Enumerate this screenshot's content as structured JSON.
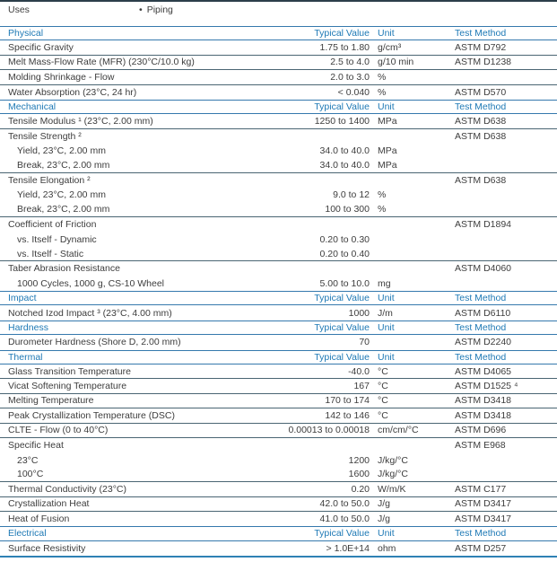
{
  "colors": {
    "accent_blue": "#1e79b5",
    "row_line": "#4a6573",
    "body_text": "#3d3d3d"
  },
  "uses": {
    "label": "Uses",
    "bullet": "•",
    "items": [
      "Piping"
    ]
  },
  "table": {
    "column_headers": {
      "value": "Typical Value",
      "unit": "Unit",
      "method": "Test Method"
    },
    "rows": [
      {
        "type": "section",
        "label": "Physical"
      },
      {
        "label": "Specific Gravity",
        "value": "1.75 to 1.80",
        "unit": "g/cm³",
        "method": "ASTM D792",
        "divider": true
      },
      {
        "label": "Melt Mass-Flow Rate (MFR) (230°C/10.0 kg)",
        "value": "2.5 to 4.0",
        "unit": "g/10 min",
        "method": "ASTM D1238",
        "divider": true
      },
      {
        "label": "Molding Shrinkage - Flow",
        "value": "2.0 to 3.0",
        "unit": "%",
        "method": "",
        "divider": true
      },
      {
        "label": "Water Absorption (23°C, 24 hr)",
        "value": "< 0.040",
        "unit": "%",
        "method": "ASTM D570",
        "divider": false
      },
      {
        "type": "section",
        "label": "Mechanical"
      },
      {
        "label": "Tensile Modulus ¹ (23°C, 2.00 mm)",
        "value": "1250 to 1400",
        "unit": "MPa",
        "method": "ASTM D638",
        "divider": true
      },
      {
        "label": "Tensile Strength ²",
        "value": "",
        "unit": "",
        "method": "ASTM D638",
        "divider": false
      },
      {
        "label": "Yield, 23°C, 2.00 mm",
        "indent": true,
        "value": "34.0 to 40.0",
        "unit": "MPa",
        "method": "",
        "divider": false
      },
      {
        "label": "Break, 23°C, 2.00 mm",
        "indent": true,
        "value": "34.0 to 40.0",
        "unit": "MPa",
        "method": "",
        "divider": true
      },
      {
        "label": "Tensile Elongation ²",
        "value": "",
        "unit": "",
        "method": "ASTM D638",
        "divider": false
      },
      {
        "label": "Yield, 23°C, 2.00 mm",
        "indent": true,
        "value": "9.0 to 12",
        "unit": "%",
        "method": "",
        "divider": false
      },
      {
        "label": "Break, 23°C, 2.00 mm",
        "indent": true,
        "value": "100 to 300",
        "unit": "%",
        "method": "",
        "divider": true
      },
      {
        "label": "Coefficient of Friction",
        "value": "",
        "unit": "",
        "method": "ASTM D1894",
        "divider": false
      },
      {
        "label": "vs. Itself - Dynamic",
        "indent": true,
        "value": "0.20 to 0.30",
        "unit": "",
        "method": "",
        "divider": false
      },
      {
        "label": "vs. Itself - Static",
        "indent": true,
        "value": "0.20 to 0.40",
        "unit": "",
        "method": "",
        "divider": true
      },
      {
        "label": "Taber Abrasion Resistance",
        "value": "",
        "unit": "",
        "method": "ASTM D4060",
        "divider": false
      },
      {
        "label": "1000 Cycles, 1000 g, CS-10 Wheel",
        "indent": true,
        "value": "5.00 to 10.0",
        "unit": "mg",
        "method": "",
        "divider": false
      },
      {
        "type": "section",
        "label": "Impact"
      },
      {
        "label": "Notched Izod Impact ³ (23°C, 4.00 mm)",
        "value": "1000",
        "unit": "J/m",
        "method": "ASTM D6110",
        "divider": false
      },
      {
        "type": "section",
        "label": "Hardness"
      },
      {
        "label": "Durometer Hardness (Shore D, 2.00 mm)",
        "value": "70",
        "unit": "",
        "method": "ASTM D2240",
        "divider": false
      },
      {
        "type": "section",
        "label": "Thermal"
      },
      {
        "label": "Glass Transition Temperature",
        "value": "-40.0",
        "unit": "°C",
        "method": "ASTM D4065",
        "divider": true
      },
      {
        "label": "Vicat Softening Temperature",
        "value": "167",
        "unit": "°C",
        "method": "ASTM D1525 ⁴",
        "divider": true
      },
      {
        "label": "Melting Temperature",
        "value": "170 to 174",
        "unit": "°C",
        "method": "ASTM D3418",
        "divider": true
      },
      {
        "label": "Peak Crystallization Temperature (DSC)",
        "value": "142 to 146",
        "unit": "°C",
        "method": "ASTM D3418",
        "divider": true
      },
      {
        "label": "CLTE - Flow (0 to 40°C)",
        "value": "0.00013 to 0.00018",
        "unit": "cm/cm/°C",
        "method": "ASTM D696",
        "divider": true
      },
      {
        "label": "Specific Heat",
        "value": "",
        "unit": "",
        "method": "ASTM E968",
        "divider": false
      },
      {
        "label": "23°C",
        "indent": true,
        "value": "1200",
        "unit": "J/kg/°C",
        "method": "",
        "divider": false
      },
      {
        "label": "100°C",
        "indent": true,
        "value": "1600",
        "unit": "J/kg/°C",
        "method": "",
        "divider": true
      },
      {
        "label": "Thermal Conductivity (23°C)",
        "value": "0.20",
        "unit": "W/m/K",
        "method": "ASTM C177",
        "divider": true
      },
      {
        "label": "Crystallization Heat",
        "value": "42.0 to 50.0",
        "unit": "J/g",
        "method": "ASTM D3417",
        "divider": true
      },
      {
        "label": "Heat of Fusion",
        "value": "41.0 to 50.0",
        "unit": "J/g",
        "method": "ASTM D3417",
        "divider": false
      },
      {
        "type": "section",
        "label": "Electrical"
      },
      {
        "label": "Surface Resistivity",
        "value": "> 1.0E+14",
        "unit": "ohm",
        "method": "ASTM D257",
        "divider": false
      }
    ]
  }
}
